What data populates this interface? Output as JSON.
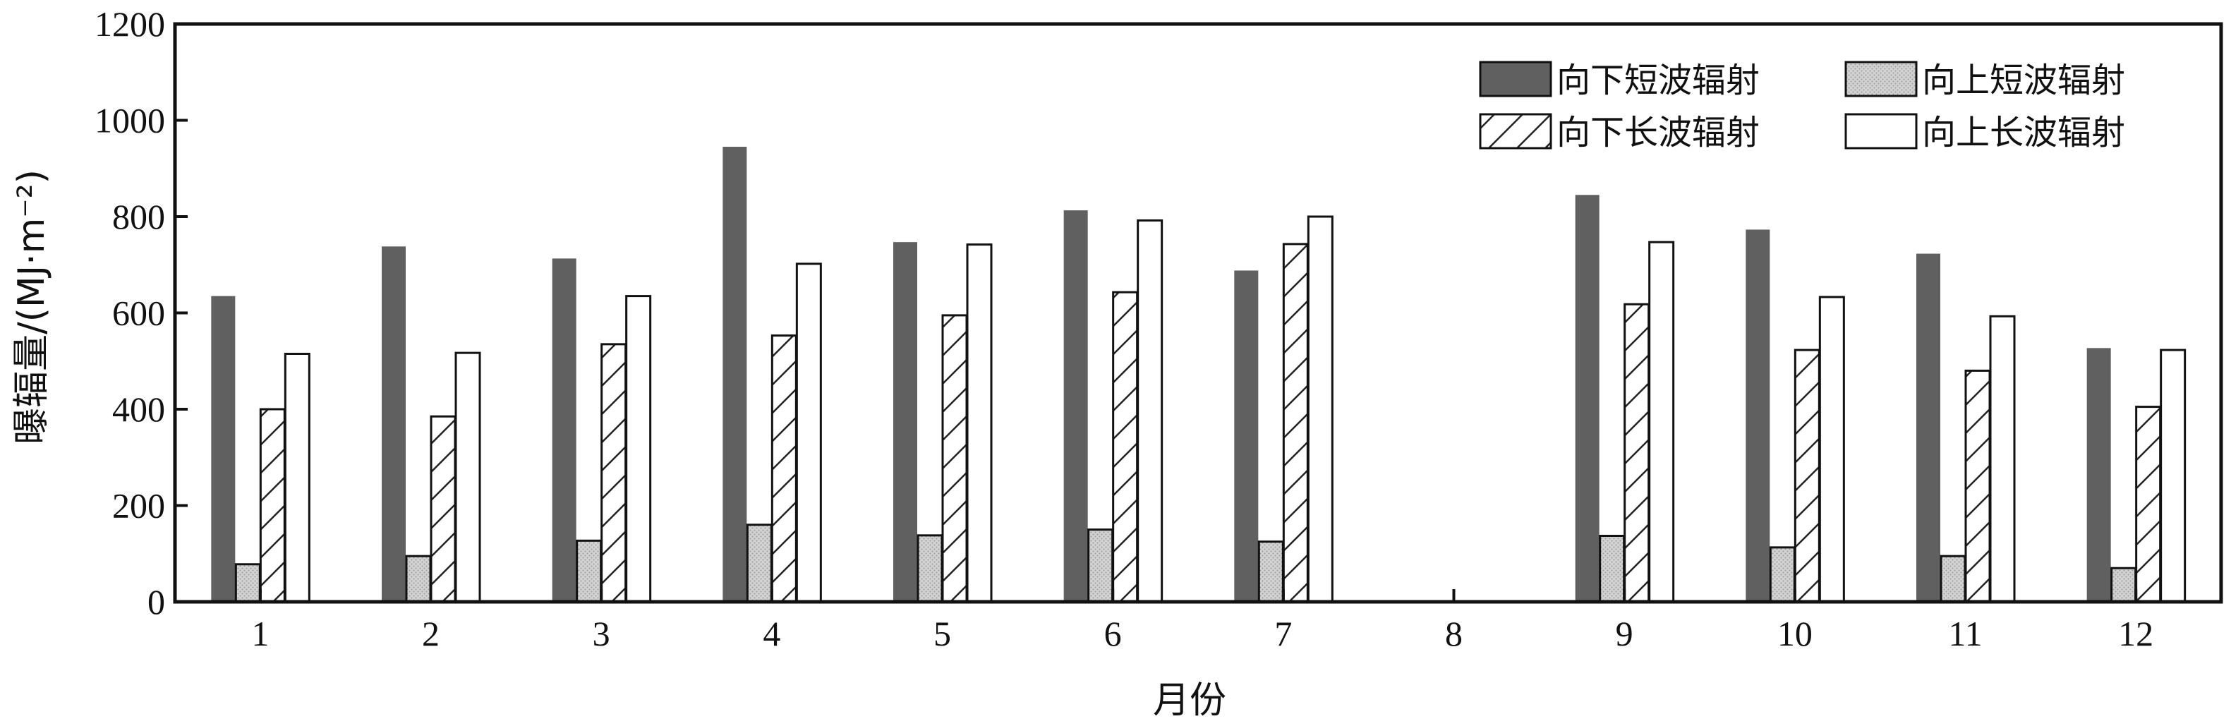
{
  "chart_data": {
    "type": "bar",
    "xlabel": "月份",
    "ylabel": "曝辐量/(MJ·m⁻²)",
    "ylim": [
      0,
      1200
    ],
    "yticks": [
      0,
      200,
      400,
      600,
      800,
      1000,
      1200
    ],
    "categories": [
      "1",
      "2",
      "3",
      "4",
      "5",
      "6",
      "7",
      "8",
      "9",
      "10",
      "11",
      "12"
    ],
    "legend_position": "top-right",
    "grid": false,
    "series": [
      {
        "name": "向下短波辐射",
        "style": "solid-dark",
        "color": "#606060",
        "values": [
          635,
          738,
          713,
          945,
          747,
          813,
          688,
          null,
          845,
          773,
          723,
          527
        ]
      },
      {
        "name": "向上短波辐射",
        "style": "dotted-gray",
        "color": "#c8c8c8",
        "values": [
          78,
          95,
          127,
          160,
          138,
          150,
          125,
          null,
          137,
          113,
          95,
          70
        ]
      },
      {
        "name": "向下长波辐射",
        "style": "hatched",
        "color": "#ffffff",
        "values": [
          400,
          385,
          535,
          553,
          595,
          643,
          743,
          null,
          618,
          523,
          480,
          405
        ]
      },
      {
        "name": "向上长波辐射",
        "style": "hollow",
        "color": "#ffffff",
        "values": [
          515,
          517,
          635,
          702,
          742,
          792,
          800,
          null,
          747,
          633,
          593,
          523
        ]
      }
    ]
  }
}
